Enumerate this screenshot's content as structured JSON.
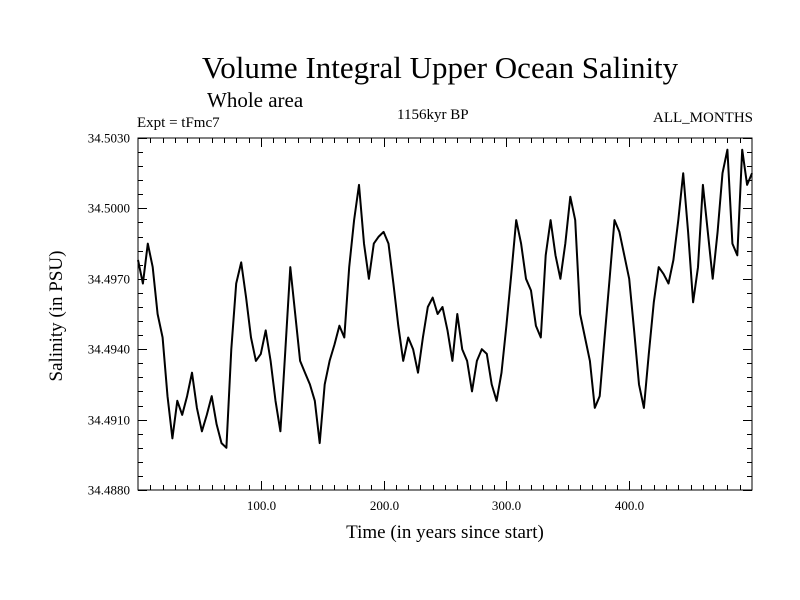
{
  "chart_data": {
    "type": "line",
    "title": "Volume Integral Upper Ocean Salinity",
    "subtitle": "Whole area",
    "annotations": {
      "experiment": "Expt = tFmc7",
      "period": "1156kyr BP",
      "months": "ALL_MONTHS"
    },
    "xlabel": "Time (in years since start)",
    "ylabel": "Salinity (in PSU)",
    "xlim": [
      0,
      500
    ],
    "ylim": [
      34.488,
      34.503
    ],
    "xticks": [
      100,
      200,
      300,
      400
    ],
    "xtick_labels": [
      "100.0",
      "200.0",
      "300.0",
      "400.0"
    ],
    "yticks": [
      34.488,
      34.491,
      34.494,
      34.497,
      34.5,
      34.503
    ],
    "ytick_labels": [
      "34.4880",
      "34.4910",
      "34.4940",
      "34.4970",
      "34.5000",
      "34.5030"
    ],
    "grid": false,
    "series": [
      {
        "name": "Salinity",
        "color": "#000000",
        "x": [
          0,
          4,
          8,
          12,
          16,
          20,
          24,
          28,
          32,
          36,
          40,
          44,
          48,
          52,
          56,
          60,
          64,
          68,
          72,
          76,
          80,
          84,
          88,
          92,
          96,
          100,
          104,
          108,
          112,
          116,
          120,
          124,
          128,
          132,
          136,
          140,
          144,
          148,
          152,
          156,
          160,
          164,
          168,
          172,
          176,
          180,
          184,
          188,
          192,
          196,
          200,
          204,
          208,
          212,
          216,
          220,
          224,
          228,
          232,
          236,
          240,
          244,
          248,
          252,
          256,
          260,
          264,
          268,
          272,
          276,
          280,
          284,
          288,
          292,
          296,
          300,
          304,
          308,
          312,
          316,
          320,
          324,
          328,
          332,
          336,
          340,
          344,
          348,
          352,
          356,
          360,
          364,
          368,
          372,
          376,
          380,
          384,
          388,
          392,
          396,
          400,
          404,
          408,
          412,
          416,
          420,
          424,
          428,
          432,
          436,
          440,
          444,
          448,
          452,
          456,
          460,
          464,
          468,
          472,
          476,
          480,
          484,
          488,
          492,
          496,
          500
        ],
        "values": [
          34.4978,
          34.4968,
          34.4985,
          34.4975,
          34.4955,
          34.4945,
          34.492,
          34.4902,
          34.4918,
          34.4912,
          34.492,
          34.493,
          34.4915,
          34.4905,
          34.4912,
          34.492,
          34.4908,
          34.49,
          34.4898,
          34.494,
          34.4968,
          34.4977,
          34.4962,
          34.4945,
          34.4935,
          34.4938,
          34.4948,
          34.4935,
          34.4918,
          34.4905,
          34.494,
          34.4975,
          34.4955,
          34.4935,
          34.493,
          34.4925,
          34.4918,
          34.49,
          34.4925,
          34.4935,
          34.4942,
          34.495,
          34.4945,
          34.4975,
          34.4995,
          34.501,
          34.4985,
          34.497,
          34.4985,
          34.4988,
          34.499,
          34.4985,
          34.4968,
          34.495,
          34.4935,
          34.4945,
          34.494,
          34.493,
          34.4945,
          34.4958,
          34.4962,
          34.4955,
          34.4958,
          34.4948,
          34.4935,
          34.4955,
          34.494,
          34.4935,
          34.4922,
          34.4935,
          34.494,
          34.4938,
          34.4925,
          34.4918,
          34.493,
          34.495,
          34.4972,
          34.4995,
          34.4985,
          34.497,
          34.4965,
          34.495,
          34.4945,
          34.498,
          34.4995,
          34.498,
          34.497,
          34.4985,
          34.5005,
          34.4995,
          34.4955,
          34.4945,
          34.4935,
          34.4915,
          34.492,
          34.4945,
          34.497,
          34.4995,
          34.499,
          34.498,
          34.497,
          34.4948,
          34.4925,
          34.4915,
          34.4938,
          34.496,
          34.4975,
          34.4972,
          34.4968,
          34.4978,
          34.4995,
          34.5015,
          34.499,
          34.496,
          34.4975,
          34.501,
          34.499,
          34.497,
          34.499,
          34.5015,
          34.5025,
          34.4985,
          34.498,
          34.5025,
          34.501,
          34.5015
        ]
      }
    ]
  }
}
